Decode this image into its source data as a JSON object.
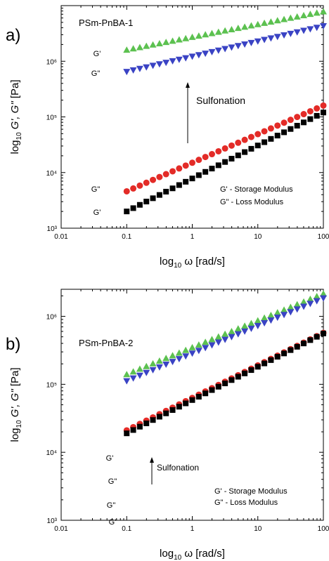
{
  "chart_data": [
    {
      "type": "scatter",
      "panel_label": "a)",
      "title": "PSm-PnBA-1",
      "xlabel": "log10 ω [rad/s]",
      "ylabel": "log10 G', G\" [Pa]",
      "x_scale": "log",
      "y_scale": "log",
      "xlim": [
        0.01,
        100
      ],
      "ylim": [
        1000,
        10000000
      ],
      "x_tick_labels": [
        "0.01",
        "0.1",
        "1",
        "10",
        "100"
      ],
      "y_tick_labels": [
        "10³",
        "10⁴",
        "10⁵",
        "10⁶"
      ],
      "grid": false,
      "legend": [
        "G' - Storage Modulus",
        "G\" - Loss Modulus"
      ],
      "legend_position": "lower-right",
      "annotation": "Sulfonation",
      "series": [
        {
          "key": "sulf_Gp",
          "label": "G'",
          "marker": "triangle-up",
          "color": "#5cc150",
          "x": [
            0.1,
            100
          ],
          "y": [
            1600000,
            7800000
          ]
        },
        {
          "key": "sulf_Gpp",
          "label": "G\"",
          "marker": "triangle-down",
          "color": "#3a43c4",
          "x": [
            0.1,
            100
          ],
          "y": [
            650000,
            4300000
          ]
        },
        {
          "key": "unsulf_Gpp",
          "label": "G\"",
          "marker": "circle",
          "color": "#e32b27",
          "x": [
            0.1,
            100
          ],
          "y": [
            4600,
            160000
          ]
        },
        {
          "key": "unsulf_Gp",
          "label": "G'",
          "marker": "square",
          "color": "#000000",
          "x": [
            0.1,
            100
          ],
          "y": [
            2000,
            120000
          ]
        }
      ]
    },
    {
      "type": "scatter",
      "panel_label": "b)",
      "title": "PSm-PnBA-2",
      "xlabel": "log10 ω [rad/s]",
      "ylabel": "log10 G', G\" [Pa]",
      "x_scale": "log",
      "y_scale": "log",
      "xlim": [
        0.01,
        100
      ],
      "ylim": [
        1000,
        2500000
      ],
      "x_tick_labels": [
        "0.01",
        "0.1",
        "1",
        "10",
        "100"
      ],
      "y_tick_labels": [
        "10³",
        "10⁴",
        "10⁵",
        "10⁶"
      ],
      "grid": false,
      "legend": [
        "G' - Storage Modulus",
        "G\" - Loss Modulus"
      ],
      "legend_position": "lower-right",
      "annotation": "Sulfonation",
      "series": [
        {
          "key": "sulf_Gp",
          "label": "G'",
          "marker": "triangle-up",
          "color": "#5cc150",
          "x": [
            0.1,
            100
          ],
          "y": [
            140000,
            2150000
          ]
        },
        {
          "key": "sulf_Gpp",
          "label": "G\"",
          "marker": "triangle-down",
          "color": "#3a43c4",
          "x": [
            0.1,
            100
          ],
          "y": [
            112000,
            1850000
          ]
        },
        {
          "key": "unsulf_Gpp",
          "label": "G\"",
          "marker": "circle",
          "color": "#e32b27",
          "x": [
            0.1,
            100
          ],
          "y": [
            21000,
            570000
          ]
        },
        {
          "key": "unsulf_Gp",
          "label": "G'",
          "marker": "square",
          "color": "#000000",
          "x": [
            0.1,
            100
          ],
          "y": [
            19000,
            560000
          ]
        }
      ]
    }
  ]
}
